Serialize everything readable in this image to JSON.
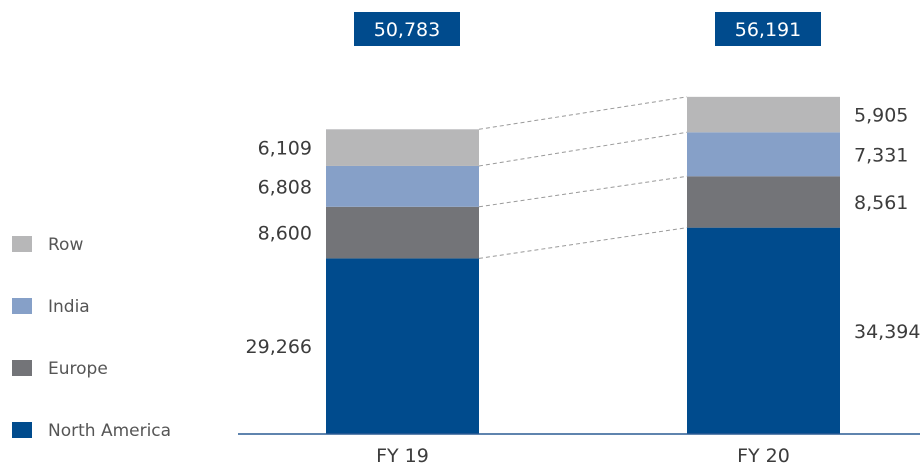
{
  "chart_data": {
    "type": "bar",
    "stacked": true,
    "categories": [
      "FY 19",
      "FY 20"
    ],
    "totals": [
      "50,783",
      "56,191"
    ],
    "series": [
      {
        "name": "North America",
        "values": [
          29266,
          34394
        ],
        "labels": [
          "29,266",
          "34,394"
        ],
        "color": "#004b8d"
      },
      {
        "name": "Europe",
        "values": [
          8600,
          8561
        ],
        "labels": [
          "8,600",
          "8,561"
        ],
        "color": "#737478"
      },
      {
        "name": "India",
        "values": [
          6808,
          7331
        ],
        "labels": [
          "6,808",
          "7,331"
        ],
        "color": "#86a0c8"
      },
      {
        "name": "Row",
        "values": [
          6109,
          5905
        ],
        "labels": [
          "6,109",
          "5,905"
        ],
        "color": "#b7b7b8"
      }
    ],
    "legend_position": "left",
    "legend_order": [
      "Row",
      "India",
      "Europe",
      "North America"
    ],
    "connector_lines": "dashed",
    "grid": false
  }
}
